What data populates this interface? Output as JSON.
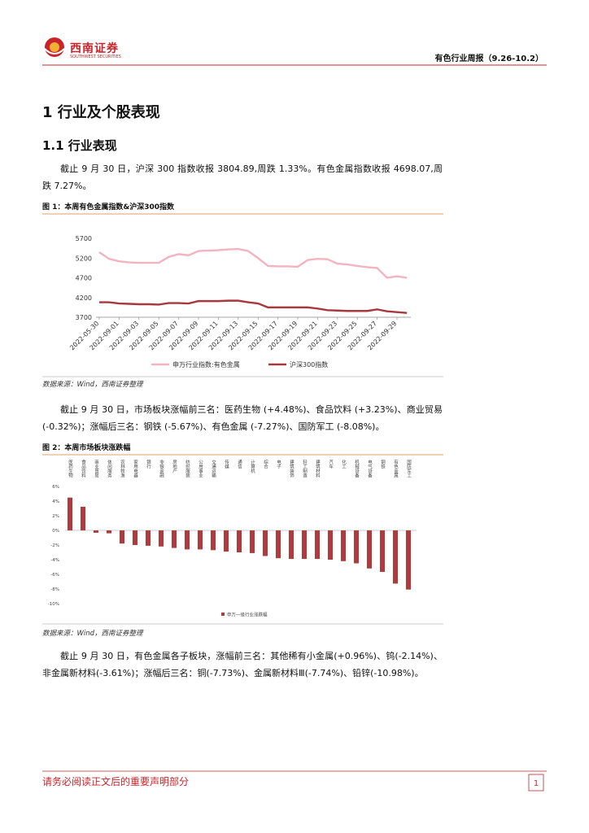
{
  "header": {
    "brand": "西南证券",
    "brand_en": "SOUTHWEST SECURITIES",
    "report_title": "有色行业周报（9.26-10.2）"
  },
  "heading": "1 行业及个股表现",
  "subheading": "1.1 行业表现",
  "paragraphs": [
    "截止 9 月 30 日，沪深 300 指数收报 3804.89,周跌 1.33%。有色金属指数收报 4698.07,周跌 7.27%。",
    "截止 9 月 30 日，市场板块涨幅前三名：医药生物 (+4.48%)、食品饮料 (+3.23%)、商业贸易 (-0.32%)；涨幅后三名：钢铁 (-5.67%)、有色金属 (-7.27%)、国防军工 (-8.08%)。",
    "截止 9 月 30 日，有色金属各子板块，涨幅前三名：其他稀有小金属(+0.96%)、钨(-2.14%)、非金属新材料(-3.61%)；涨幅后三名：铜(-7.73%)、金属新材料Ⅲ(-7.74%)、铅锌(-10.98%)。"
  ],
  "figures": [
    {
      "caption": "图 1：本周有色金属指数&沪深300指数",
      "source": "数据来源：Wind，西南证券整理"
    },
    {
      "caption": "图 2：本周市场板块涨跌幅",
      "source": "数据来源：Wind，西南证券整理"
    }
  ],
  "chart_data": [
    {
      "type": "line",
      "categories": [
        "2022-05-30",
        null,
        "2022-09-01",
        null,
        "2022-09-03",
        null,
        "2022-09-05",
        null,
        "2022-09-07",
        null,
        "2022-09-09",
        null,
        "2022-09-11",
        null,
        "2022-09-13",
        null,
        "2022-09-15",
        null,
        "2022-09-17",
        null,
        "2022-09-19",
        null,
        "2022-09-21",
        null,
        "2022-09-23",
        null,
        "2022-09-25",
        null,
        "2022-09-27",
        null,
        "2022-09-29",
        null
      ],
      "series": [
        {
          "name": "申万行业指数:有色金属",
          "color": "#f4b3c0",
          "values": [
            5350,
            5180,
            5120,
            5090,
            5080,
            5080,
            5080,
            5230,
            5300,
            5270,
            5380,
            5390,
            5400,
            5420,
            5430,
            5380,
            5200,
            5000,
            4990,
            4990,
            4980,
            5150,
            5180,
            5170,
            5060,
            5040,
            5000,
            4970,
            4950,
            4700,
            4740,
            4700
          ]
        },
        {
          "name": "沪深300指数",
          "color": "#a8383c",
          "values": [
            4080,
            4080,
            4050,
            4040,
            4030,
            4030,
            4020,
            4060,
            4060,
            4050,
            4110,
            4110,
            4110,
            4120,
            4120,
            4080,
            4050,
            3950,
            3950,
            3950,
            3950,
            3950,
            3920,
            3880,
            3870,
            3860,
            3860,
            3860,
            3900,
            3850,
            3830,
            3810
          ]
        }
      ],
      "ylim": [
        3700,
        5700
      ],
      "yticks": [
        3700,
        4200,
        4700,
        5200,
        5700
      ],
      "legend": "bottom"
    },
    {
      "type": "bar",
      "categories": [
        "医药生物",
        "食品饮料",
        "商业贸易",
        "休闲服务",
        "农林牧渔",
        "家用电器",
        "银行",
        "非银金融",
        "房地产",
        "纺织服装",
        "公用事业",
        "交通运输",
        "传媒",
        "通信",
        "计算机",
        "综合",
        "电子",
        "建筑装饰",
        "轻工制造",
        "建筑材料",
        "汽车",
        "化工",
        "机械设备",
        "电气设备",
        "钢铁",
        "有色金属",
        "国防军工"
      ],
      "series": [
        {
          "name": "申万一级行业涨跌幅",
          "color": "#b03a3c",
          "values": [
            4.48,
            3.23,
            -0.32,
            -0.4,
            -1.8,
            -2.0,
            -2.1,
            -2.2,
            -2.4,
            -2.6,
            -2.6,
            -2.7,
            -2.9,
            -3.0,
            -3.1,
            -3.5,
            -3.8,
            -3.9,
            -3.9,
            -3.9,
            -4.0,
            -4.2,
            -4.5,
            -5.2,
            -5.67,
            -7.27,
            -8.08
          ]
        }
      ],
      "ylim": [
        -10,
        6
      ],
      "yticks": [
        {
          "value": 6,
          "label": "6%"
        },
        {
          "value": 4,
          "label": "4%"
        },
        {
          "value": 2,
          "label": "2%"
        },
        {
          "value": 0,
          "label": "0%"
        },
        {
          "value": -2,
          "label": "-2%"
        },
        {
          "value": -4,
          "label": "-4%"
        },
        {
          "value": -6,
          "label": "-6%"
        },
        {
          "value": -8,
          "label": "-8%"
        },
        {
          "value": -10,
          "label": "-10%"
        }
      ],
      "legend": "bottom"
    }
  ]
}
